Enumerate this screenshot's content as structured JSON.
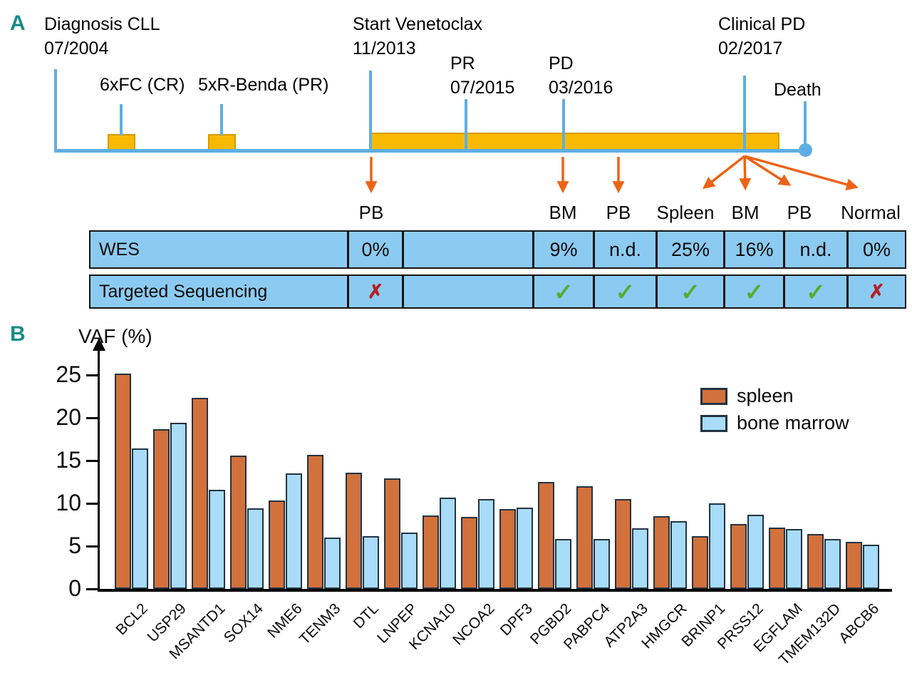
{
  "panel_a": {
    "label": "A",
    "events": {
      "diagnosis": "Diagnosis CLL\n07/2004",
      "fc": "6xFC (CR)",
      "r_benda": "5xR-Benda (PR)",
      "venetoclax": "Start Venetoclax\n11/2013",
      "pr": "PR\n07/2015",
      "pd": "PD\n03/2016",
      "clinical_pd": "Clinical PD\n02/2017",
      "death": "Death"
    },
    "samples": [
      "PB",
      "BM",
      "PB",
      "Spleen",
      "BM",
      "PB",
      "Normal"
    ],
    "table": {
      "rows": [
        {
          "label": "WES",
          "cells": [
            "0%",
            "",
            "9%",
            "n.d.",
            "25%",
            "16%",
            "n.d.",
            "0%"
          ]
        },
        {
          "label": "Targeted Sequencing",
          "cells": [
            "cross-icon",
            "",
            "check-icon",
            "check-icon",
            "check-icon",
            "check-icon",
            "check-icon",
            "cross-icon"
          ]
        }
      ]
    }
  },
  "panel_b": {
    "label": "B"
  },
  "chart_data": {
    "type": "bar",
    "title": "",
    "xlabel": "",
    "ylabel": "VAF (%)",
    "ylim": [
      0,
      27
    ],
    "yticks": [
      0,
      5,
      10,
      15,
      20,
      25
    ],
    "grid": false,
    "legend_position": "upper right",
    "categories": [
      "BCL2",
      "USP29",
      "MSANTD1",
      "SOX14",
      "NME6",
      "TENM3",
      "DTL",
      "LNPEP",
      "KCNA10",
      "NCOA2",
      "DPF3",
      "PGBD2",
      "PABPC4",
      "ATP2A3",
      "HMGCR",
      "BRINP1",
      "PRSS12",
      "EGFLAM",
      "TMEM132D",
      "ABCB6"
    ],
    "series": [
      {
        "name": "spleen",
        "color": "#D2713B",
        "values": [
          25.2,
          18.7,
          22.3,
          15.6,
          10.3,
          15.7,
          13.6,
          12.9,
          8.6,
          8.4,
          9.3,
          12.5,
          12.0,
          10.5,
          8.5,
          6.2,
          7.6,
          7.2,
          6.4,
          5.5
        ]
      },
      {
        "name": "bone marrow",
        "color": "#A8DCF8",
        "values": [
          16.4,
          19.4,
          11.6,
          9.4,
          13.5,
          6.0,
          6.2,
          6.6,
          10.7,
          10.5,
          9.5,
          5.8,
          5.8,
          7.1,
          7.9,
          10.0,
          8.7,
          7.0,
          5.8,
          5.2
        ]
      }
    ]
  },
  "colors": {
    "panel_label_teal": "#1A8A8A",
    "timeline_blue": "#5FAEE3",
    "treatment_gold": "#F8BA00",
    "gold_border": "#D89800",
    "arrow_orange": "#EC6316",
    "table_blue": "#8CCBF1",
    "check_green": "#55AD33",
    "cross_red": "#B42025",
    "spleen_bar": "#D2713B",
    "bone_marrow_bar": "#A8DCF8"
  }
}
